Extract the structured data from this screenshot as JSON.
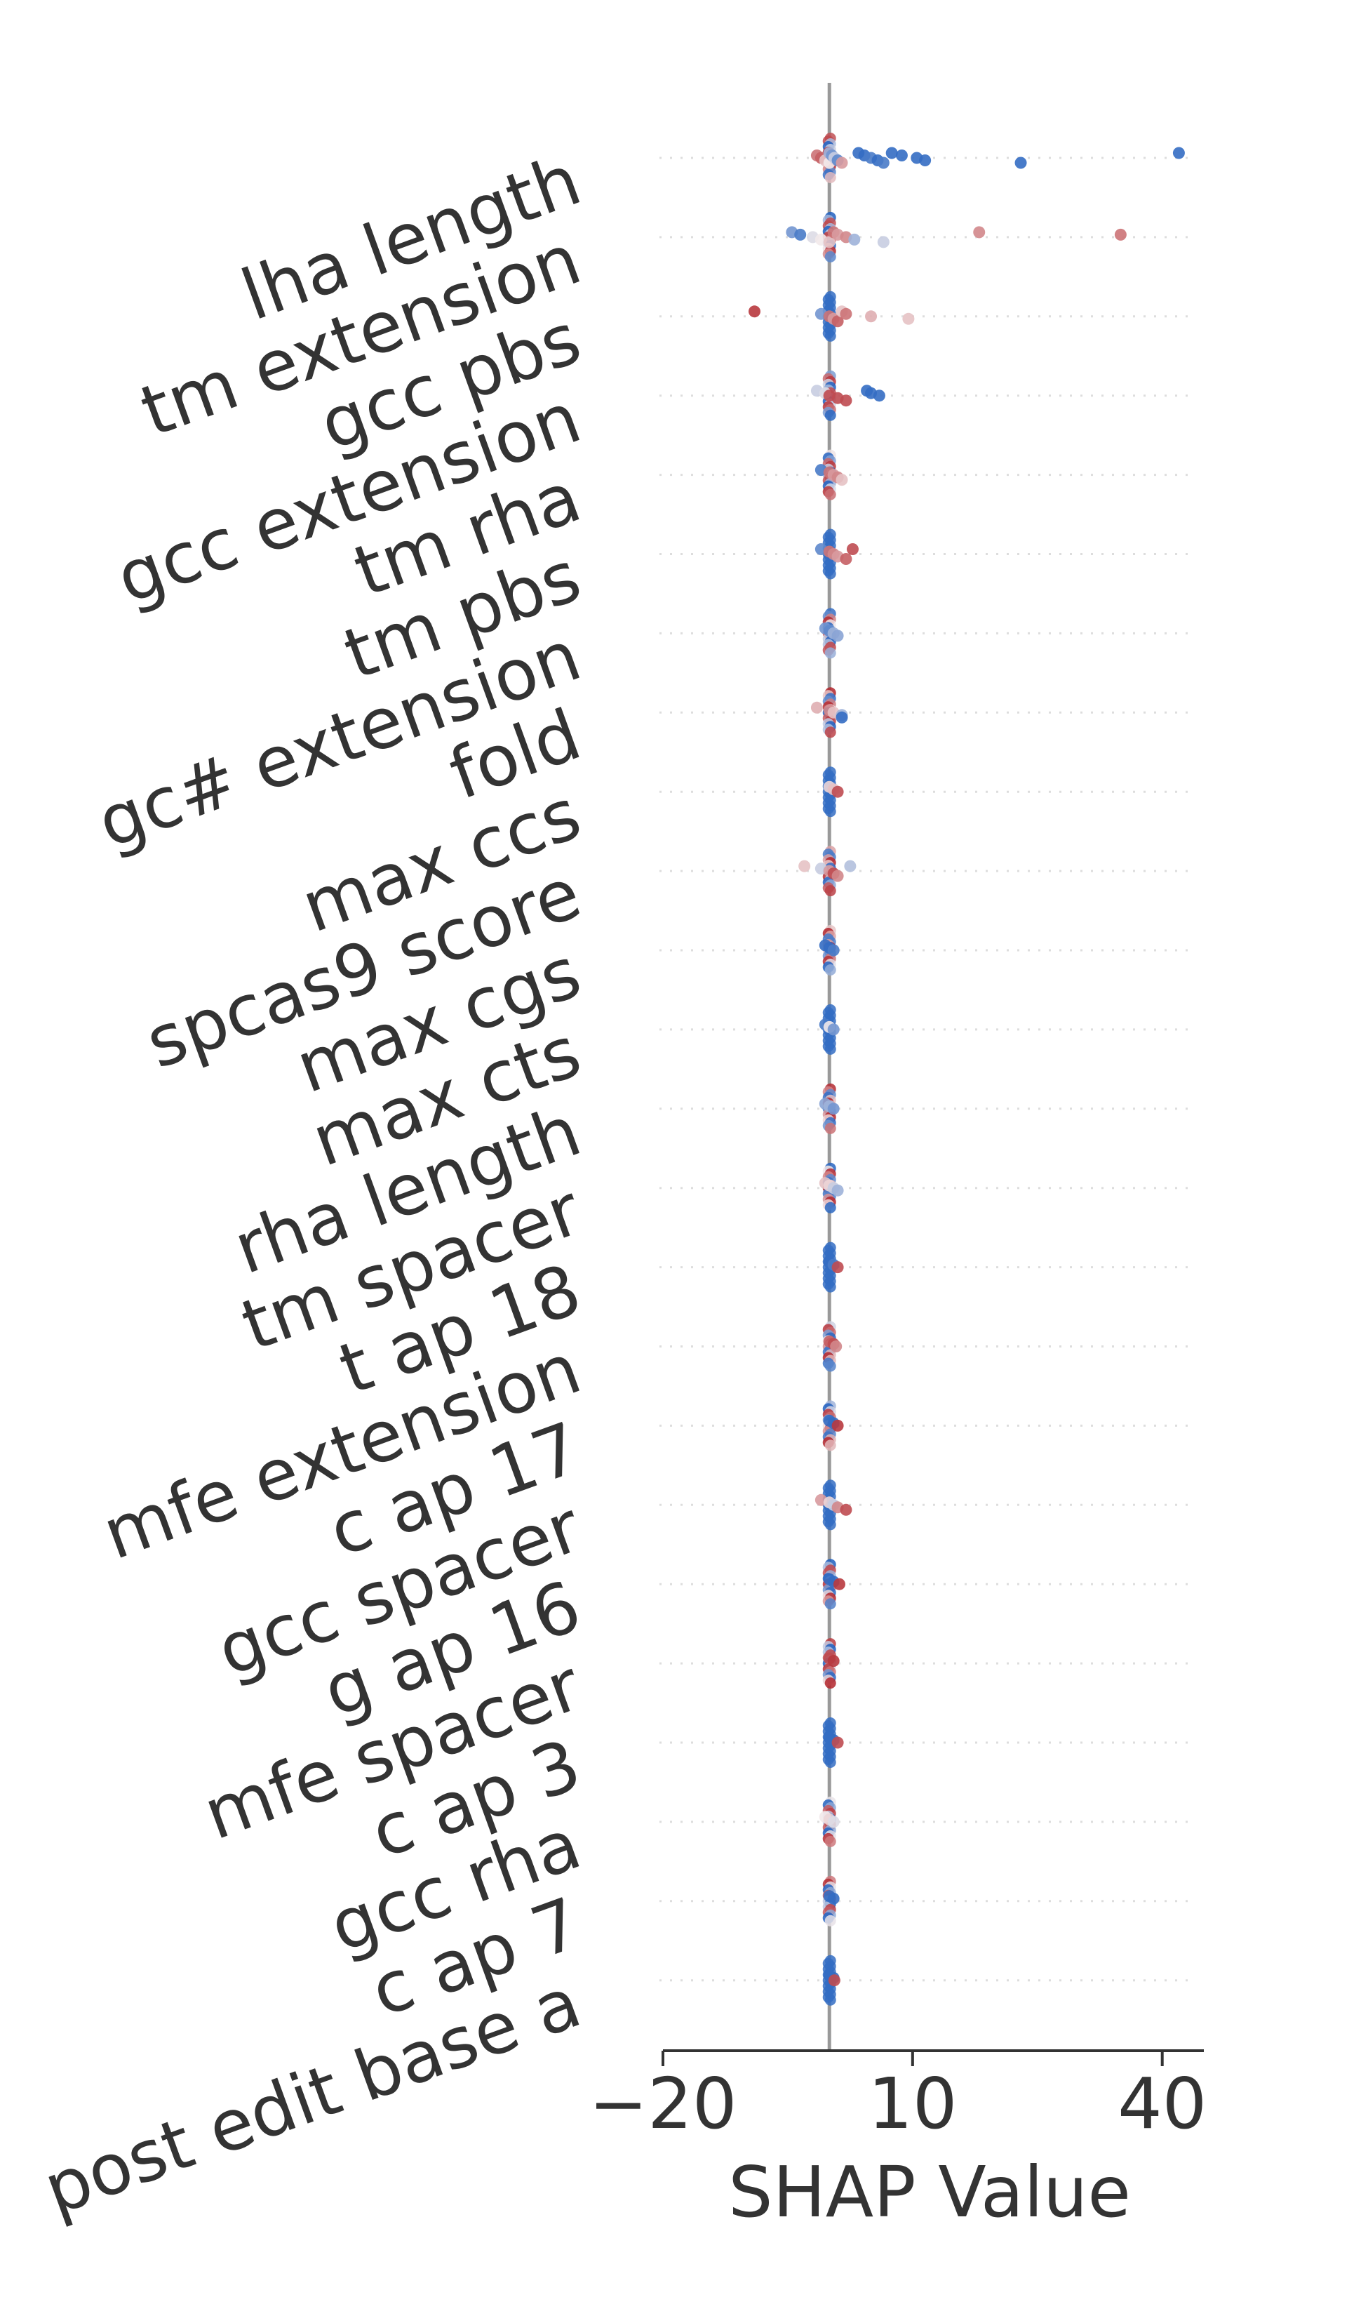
{
  "chart_data": {
    "type": "scatter",
    "subtype": "shap-beeswarm",
    "title": "",
    "xlabel": "SHAP Value",
    "ylabel": "",
    "xlim": [
      -20,
      45
    ],
    "xticks": [
      -20,
      10,
      40
    ],
    "zero_line": true,
    "grid": "horizontal dotted",
    "legend": "none",
    "colors": {
      "low": "#1f5fbf",
      "mid": "#f2e9ea",
      "high": "#b2242b",
      "axis": "#333333",
      "zero_line": "#999999",
      "grid": "#dddddd"
    },
    "features": [
      {
        "name": "lha length",
        "points": [
          {
            "x": 3.5,
            "v": 0.05
          },
          {
            "x": 4.2,
            "v": 0.05
          },
          {
            "x": 5,
            "v": 0.1
          },
          {
            "x": 5.8,
            "v": 0.05
          },
          {
            "x": 6.5,
            "v": 0.1
          },
          {
            "x": 7.5,
            "v": 0.05
          },
          {
            "x": 8.7,
            "v": 0.05
          },
          {
            "x": 10.5,
            "v": 0.05
          },
          {
            "x": 11.5,
            "v": 0.05
          },
          {
            "x": 23,
            "v": 0.05
          },
          {
            "x": 42,
            "v": 0.05
          },
          {
            "x": -1.5,
            "v": 0.8
          },
          {
            "x": -1,
            "v": 0.85
          },
          {
            "x": -0.5,
            "v": 0.6
          },
          {
            "x": 0,
            "v": 0.5
          },
          {
            "x": 0,
            "v": 0.3
          },
          {
            "x": 0.3,
            "v": 0.2
          },
          {
            "x": 0.6,
            "v": 0.4
          },
          {
            "x": 1,
            "v": 0.15
          },
          {
            "x": 1.5,
            "v": 0.7
          }
        ]
      },
      {
        "name": "tm extension",
        "points": [
          {
            "x": -4.5,
            "v": 0.2
          },
          {
            "x": -3.5,
            "v": 0.1
          },
          {
            "x": -2,
            "v": 0.45
          },
          {
            "x": -1,
            "v": 0.5
          },
          {
            "x": 0,
            "v": 0.6
          },
          {
            "x": 0.5,
            "v": 0.8
          },
          {
            "x": 1,
            "v": 0.7
          },
          {
            "x": 2,
            "v": 0.75
          },
          {
            "x": 3,
            "v": 0.3
          },
          {
            "x": 6.5,
            "v": 0.4
          },
          {
            "x": 18,
            "v": 0.75
          },
          {
            "x": 35,
            "v": 0.8
          }
        ]
      },
      {
        "name": "gcc pbs",
        "points": [
          {
            "x": -9,
            "v": 0.95
          },
          {
            "x": -1,
            "v": 0.2
          },
          {
            "x": 0,
            "v": 0.8
          },
          {
            "x": 0.5,
            "v": 0.7
          },
          {
            "x": 1,
            "v": 0.85
          },
          {
            "x": 1.5,
            "v": 0.6
          },
          {
            "x": 2,
            "v": 0.8
          },
          {
            "x": 5,
            "v": 0.65
          },
          {
            "x": 9.5,
            "v": 0.6
          }
        ]
      },
      {
        "name": "gcc extension",
        "points": [
          {
            "x": -1.5,
            "v": 0.4
          },
          {
            "x": -0.5,
            "v": 0.45
          },
          {
            "x": 0,
            "v": 0.9
          },
          {
            "x": 1,
            "v": 0.9
          },
          {
            "x": 2,
            "v": 0.9
          },
          {
            "x": 4.5,
            "v": 0.05
          },
          {
            "x": 5,
            "v": 0.05
          },
          {
            "x": 6,
            "v": 0.05
          }
        ]
      },
      {
        "name": "tm rha",
        "points": [
          {
            "x": -1,
            "v": 0.1
          },
          {
            "x": 0,
            "v": 0.8
          },
          {
            "x": 0.5,
            "v": 0.7
          },
          {
            "x": 1,
            "v": 0.75
          },
          {
            "x": 1.5,
            "v": 0.6
          }
        ]
      },
      {
        "name": "tm pbs",
        "points": [
          {
            "x": -1,
            "v": 0.15
          },
          {
            "x": 0,
            "v": 0.8
          },
          {
            "x": 0.5,
            "v": 0.75
          },
          {
            "x": 1,
            "v": 0.7
          },
          {
            "x": 2,
            "v": 0.85
          },
          {
            "x": 2.8,
            "v": 0.9
          }
        ]
      },
      {
        "name": "gc# extension",
        "points": [
          {
            "x": -0.5,
            "v": 0.2
          },
          {
            "x": 0,
            "v": 0.15
          },
          {
            "x": 0.5,
            "v": 0.3
          },
          {
            "x": 1,
            "v": 0.25
          }
        ]
      },
      {
        "name": "fold",
        "points": [
          {
            "x": -1.5,
            "v": 0.65
          },
          {
            "x": 0,
            "v": 0.75
          },
          {
            "x": 0.5,
            "v": 0.6
          },
          {
            "x": 1.5,
            "v": 0.3
          },
          {
            "x": 1.5,
            "v": 0.05
          }
        ]
      },
      {
        "name": "max ccs",
        "points": [
          {
            "x": 0,
            "v": 0.55
          },
          {
            "x": 0.5,
            "v": 0.6
          },
          {
            "x": 1,
            "v": 0.9
          }
        ]
      },
      {
        "name": "spcas9 score",
        "points": [
          {
            "x": -3,
            "v": 0.6
          },
          {
            "x": -1,
            "v": 0.4
          },
          {
            "x": 0,
            "v": 0.7
          },
          {
            "x": 0.5,
            "v": 0.9
          },
          {
            "x": 1,
            "v": 0.75
          },
          {
            "x": 2.5,
            "v": 0.35
          }
        ]
      },
      {
        "name": "max cgs",
        "points": [
          {
            "x": -0.5,
            "v": 0.05
          },
          {
            "x": 0,
            "v": 0.05
          },
          {
            "x": 0.5,
            "v": 0.1
          }
        ]
      },
      {
        "name": "max cts",
        "points": [
          {
            "x": -0.5,
            "v": 0.1
          },
          {
            "x": 0,
            "v": 0.5
          },
          {
            "x": 0.5,
            "v": 0.2
          }
        ]
      },
      {
        "name": "rha length",
        "points": [
          {
            "x": -0.5,
            "v": 0.25
          },
          {
            "x": 0,
            "v": 0.3
          },
          {
            "x": 0.5,
            "v": 0.2
          }
        ]
      },
      {
        "name": "tm spacer",
        "points": [
          {
            "x": -0.5,
            "v": 0.6
          },
          {
            "x": 0,
            "v": 0.55
          },
          {
            "x": 0.5,
            "v": 0.4
          },
          {
            "x": 1,
            "v": 0.3
          }
        ]
      },
      {
        "name": "t ap 18",
        "points": [
          {
            "x": 0,
            "v": 0.05
          },
          {
            "x": 0.5,
            "v": 0.1
          },
          {
            "x": 1,
            "v": 0.9
          }
        ]
      },
      {
        "name": "mfe extension",
        "points": [
          {
            "x": 0,
            "v": 0.85
          },
          {
            "x": 0.5,
            "v": 0.9
          },
          {
            "x": 0.8,
            "v": 0.75
          }
        ]
      },
      {
        "name": "c ap 17",
        "points": [
          {
            "x": 0,
            "v": 0.05
          },
          {
            "x": 0.5,
            "v": 0.05
          },
          {
            "x": 1,
            "v": 0.95
          }
        ]
      },
      {
        "name": "gcc spacer",
        "points": [
          {
            "x": -1,
            "v": 0.7
          },
          {
            "x": 0,
            "v": 0.55
          },
          {
            "x": 0.5,
            "v": 0.4
          },
          {
            "x": 1,
            "v": 0.75
          },
          {
            "x": 2,
            "v": 0.9
          }
        ]
      },
      {
        "name": "g ap 16",
        "points": [
          {
            "x": 0,
            "v": 0.05
          },
          {
            "x": 0.5,
            "v": 0.05
          },
          {
            "x": 1.2,
            "v": 0.95
          }
        ]
      },
      {
        "name": "mfe spacer",
        "points": [
          {
            "x": 0,
            "v": 0.9
          },
          {
            "x": 0.5,
            "v": 0.95
          }
        ]
      },
      {
        "name": "c ap 3",
        "points": [
          {
            "x": 0,
            "v": 0.05
          },
          {
            "x": 0.5,
            "v": 0.05
          },
          {
            "x": 1,
            "v": 0.9
          }
        ]
      },
      {
        "name": "gcc rha",
        "points": [
          {
            "x": -0.5,
            "v": 0.5
          },
          {
            "x": 0,
            "v": 0.55
          },
          {
            "x": 0.5,
            "v": 0.45
          }
        ]
      },
      {
        "name": "c ap 7",
        "points": [
          {
            "x": 0,
            "v": 0.05
          },
          {
            "x": 0.5,
            "v": 0.05
          }
        ]
      },
      {
        "name": "post edit base a",
        "points": [
          {
            "x": 0,
            "v": 0.05
          },
          {
            "x": 0.5,
            "v": 0.05
          },
          {
            "x": 0.6,
            "v": 0.9
          }
        ]
      }
    ]
  }
}
